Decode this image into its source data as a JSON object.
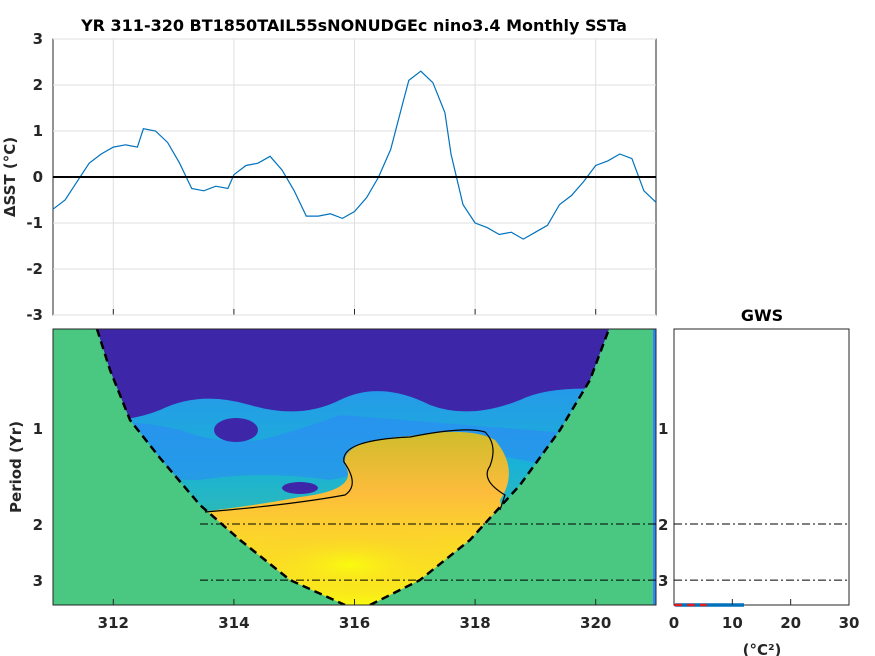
{
  "chart_data": [
    {
      "type": "line",
      "title": "YR 311-320 BT1850TAIL55sNONUDGEc nino3.4 Monthly SSTa",
      "ylabel": "ΔSST (°C)",
      "xlim": [
        311,
        321
      ],
      "ylim": [
        -3,
        3
      ],
      "yticks": [
        "-3",
        "-2",
        "-1",
        "0",
        "1",
        "2",
        "3"
      ],
      "grid": true,
      "series": [
        {
          "color": "#0072bd",
          "x": [
            311.0,
            311.2,
            311.4,
            311.6,
            311.8,
            312.0,
            312.2,
            312.4,
            312.5,
            312.7,
            312.9,
            313.1,
            313.3,
            313.5,
            313.7,
            313.9,
            314.0,
            314.2,
            314.4,
            314.6,
            314.8,
            315.0,
            315.2,
            315.4,
            315.6,
            315.8,
            316.0,
            316.2,
            316.4,
            316.6,
            316.8,
            316.9,
            317.1,
            317.3,
            317.5,
            317.6,
            317.8,
            318.0,
            318.2,
            318.4,
            318.6,
            318.8,
            319.0,
            319.2,
            319.4,
            319.6,
            319.8,
            320.0,
            320.2,
            320.4,
            320.6,
            320.8,
            321.0
          ],
          "y": [
            -0.7,
            -0.5,
            -0.1,
            0.3,
            0.5,
            0.65,
            0.7,
            0.65,
            1.05,
            1.0,
            0.75,
            0.3,
            -0.25,
            -0.3,
            -0.2,
            -0.25,
            0.05,
            0.25,
            0.3,
            0.45,
            0.15,
            -0.3,
            -0.85,
            -0.85,
            -0.8,
            -0.9,
            -0.75,
            -0.45,
            0.0,
            0.6,
            1.6,
            2.1,
            2.3,
            2.05,
            1.4,
            0.5,
            -0.6,
            -1.0,
            -1.1,
            -1.25,
            -1.2,
            -1.35,
            -1.2,
            -1.05,
            -0.6,
            -0.4,
            -0.1,
            0.25,
            0.35,
            0.5,
            0.4,
            -0.3,
            -0.55
          ]
        },
        {
          "color": "#000000",
          "x": [
            311,
            321
          ],
          "y": [
            0,
            0
          ]
        }
      ]
    },
    {
      "type": "heatmap",
      "ylabel": "Period (Yr)",
      "xlim": [
        311,
        321
      ],
      "xticks": [
        "312",
        "314",
        "316",
        "318",
        "320"
      ],
      "yticks": [
        "1",
        "2",
        "3"
      ],
      "dashed_levels": [
        2,
        3
      ],
      "colormap": [
        "#3e26a8",
        "#2e87f7",
        "#1ab2d6",
        "#4ac780",
        "#cebc2b",
        "#fdbc3c",
        "#f9fb0e"
      ]
    },
    {
      "type": "line",
      "title": "GWS",
      "xlabel": "(°C²)",
      "xlim": [
        0,
        30
      ],
      "xticks": [
        "0",
        "10",
        "20",
        "30"
      ],
      "series": [
        {
          "color": "#0072bd",
          "x": [
            0.2,
            0.3,
            0.5,
            0.8,
            1.5,
            3.0,
            6.0,
            9.0,
            11.5,
            12.0,
            11.0,
            10.8,
            11.0,
            11.8
          ],
          "y": [
            0.1,
            0.4,
            0.8,
            1.2,
            1.7,
            2.0,
            2.2,
            2.4,
            2.5,
            2.6,
            2.8,
            3.0,
            3.2,
            3.4
          ]
        },
        {
          "color": "#e41a1c",
          "x": [
            0.0,
            0.2,
            0.4,
            0.7,
            1.0,
            1.4,
            1.8,
            2.3,
            3.0,
            3.8,
            4.6,
            5.6
          ],
          "y": [
            0.1,
            0.4,
            0.8,
            1.2,
            1.6,
            1.9,
            2.2,
            2.5,
            2.8,
            3.0,
            3.2,
            3.4
          ]
        }
      ]
    }
  ]
}
